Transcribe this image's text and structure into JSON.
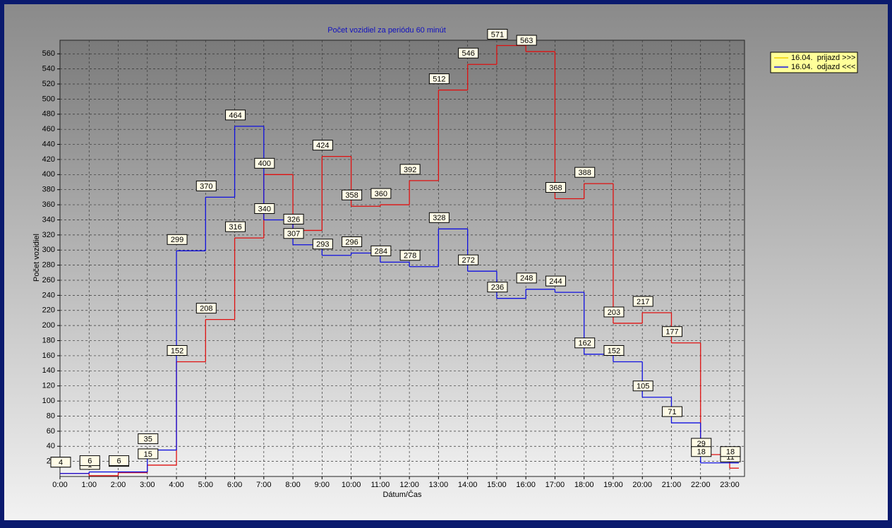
{
  "chart_data": {
    "type": "step",
    "title": "Počet vozidiel za periódu 60 minút",
    "x_label": "Dátum/Čas",
    "y_label": "Počet vozidiel",
    "categories": [
      "0:00",
      "1:00",
      "2:00",
      "3:00",
      "4:00",
      "5:00",
      "6:00",
      "7:00",
      "8:00",
      "9:00",
      "10:00",
      "11:00",
      "12:00",
      "13:00",
      "14:00",
      "15:00",
      "16:00",
      "17:00",
      "18:00",
      "19:00",
      "20:00",
      "21:00",
      "22:00",
      "23:00"
    ],
    "series": [
      {
        "name": "16.04.  prijazd >>>",
        "color": "#e01010",
        "legend_color": "#f0d000",
        "values": [
          4,
          1,
          5,
          15,
          152,
          208,
          316,
          400,
          326,
          424,
          358,
          360,
          392,
          512,
          546,
          571,
          563,
          368,
          388,
          203,
          217,
          177,
          29,
          11
        ]
      },
      {
        "name": "16.04.  odjazd <<<",
        "color": "#1010e0",
        "legend_color": "#1010e0",
        "values": [
          4,
          6,
          6,
          35,
          299,
          370,
          464,
          340,
          307,
          293,
          296,
          284,
          278,
          328,
          272,
          236,
          248,
          244,
          162,
          152,
          105,
          71,
          18,
          18
        ]
      }
    ],
    "ylim": [
      0,
      578
    ],
    "yticks": [
      20,
      40,
      60,
      80,
      100,
      120,
      140,
      160,
      180,
      200,
      220,
      240,
      260,
      280,
      300,
      320,
      340,
      360,
      380,
      400,
      420,
      440,
      460,
      480,
      500,
      520,
      540,
      560
    ],
    "grid": true,
    "legend": "top-right"
  }
}
